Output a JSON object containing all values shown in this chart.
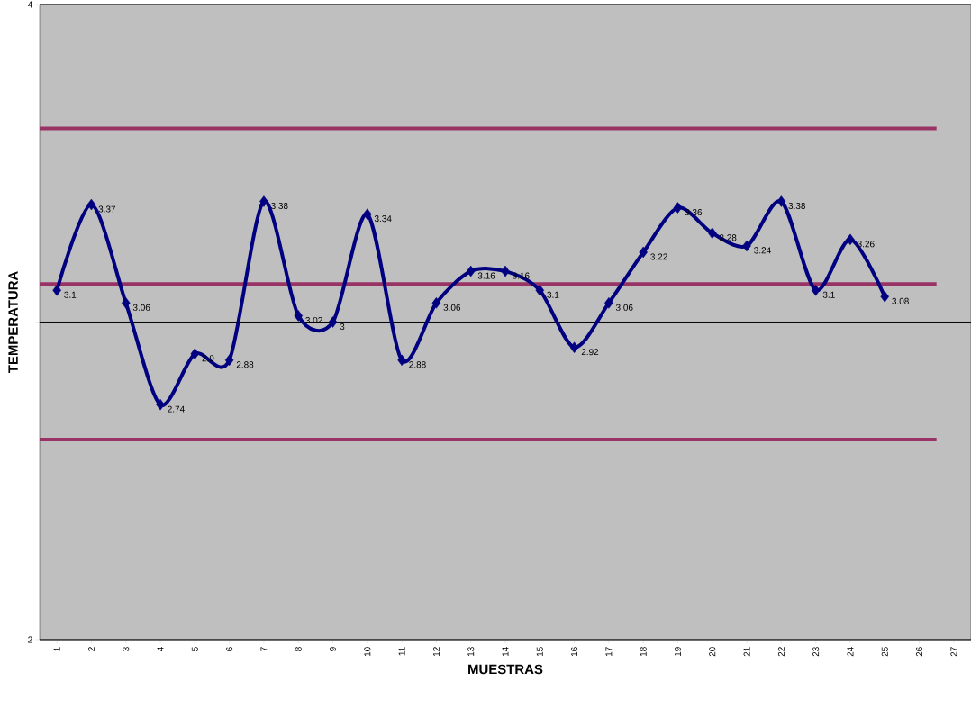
{
  "chart_data": {
    "type": "line",
    "xlabel": "MUESTRAS",
    "ylabel": "TEMPERATURA",
    "categories": [
      "1",
      "2",
      "3",
      "4",
      "5",
      "6",
      "7",
      "8",
      "9",
      "10",
      "11",
      "12",
      "13",
      "14",
      "15",
      "16",
      "17",
      "18",
      "19",
      "20",
      "21",
      "22",
      "23",
      "24",
      "25",
      "26",
      "27"
    ],
    "series": [
      {
        "color": "#000080",
        "values": [
          3.1,
          3.37,
          3.06,
          2.74,
          2.9,
          2.88,
          3.38,
          3.02,
          3,
          3.34,
          2.88,
          3.06,
          3.16,
          3.16,
          3.1,
          2.92,
          3.06,
          3.22,
          3.36,
          3.28,
          3.24,
          3.38,
          3.1,
          3.26,
          3.08,
          null,
          null
        ]
      }
    ],
    "ylim": [
      2,
      4
    ],
    "yticks": [
      2,
      {
        "value": 3,
        "label": null
      },
      4
    ],
    "grid": "y",
    "marker": "diamond",
    "line_style": "solid",
    "data_labels": true,
    "ref_lines": [
      {
        "axis": "y",
        "value": 3.61,
        "color": "#993366"
      },
      {
        "axis": "y",
        "value": 3.12,
        "color": "#993366"
      },
      {
        "axis": "y",
        "value": 2.63,
        "color": "#993366"
      }
    ]
  }
}
